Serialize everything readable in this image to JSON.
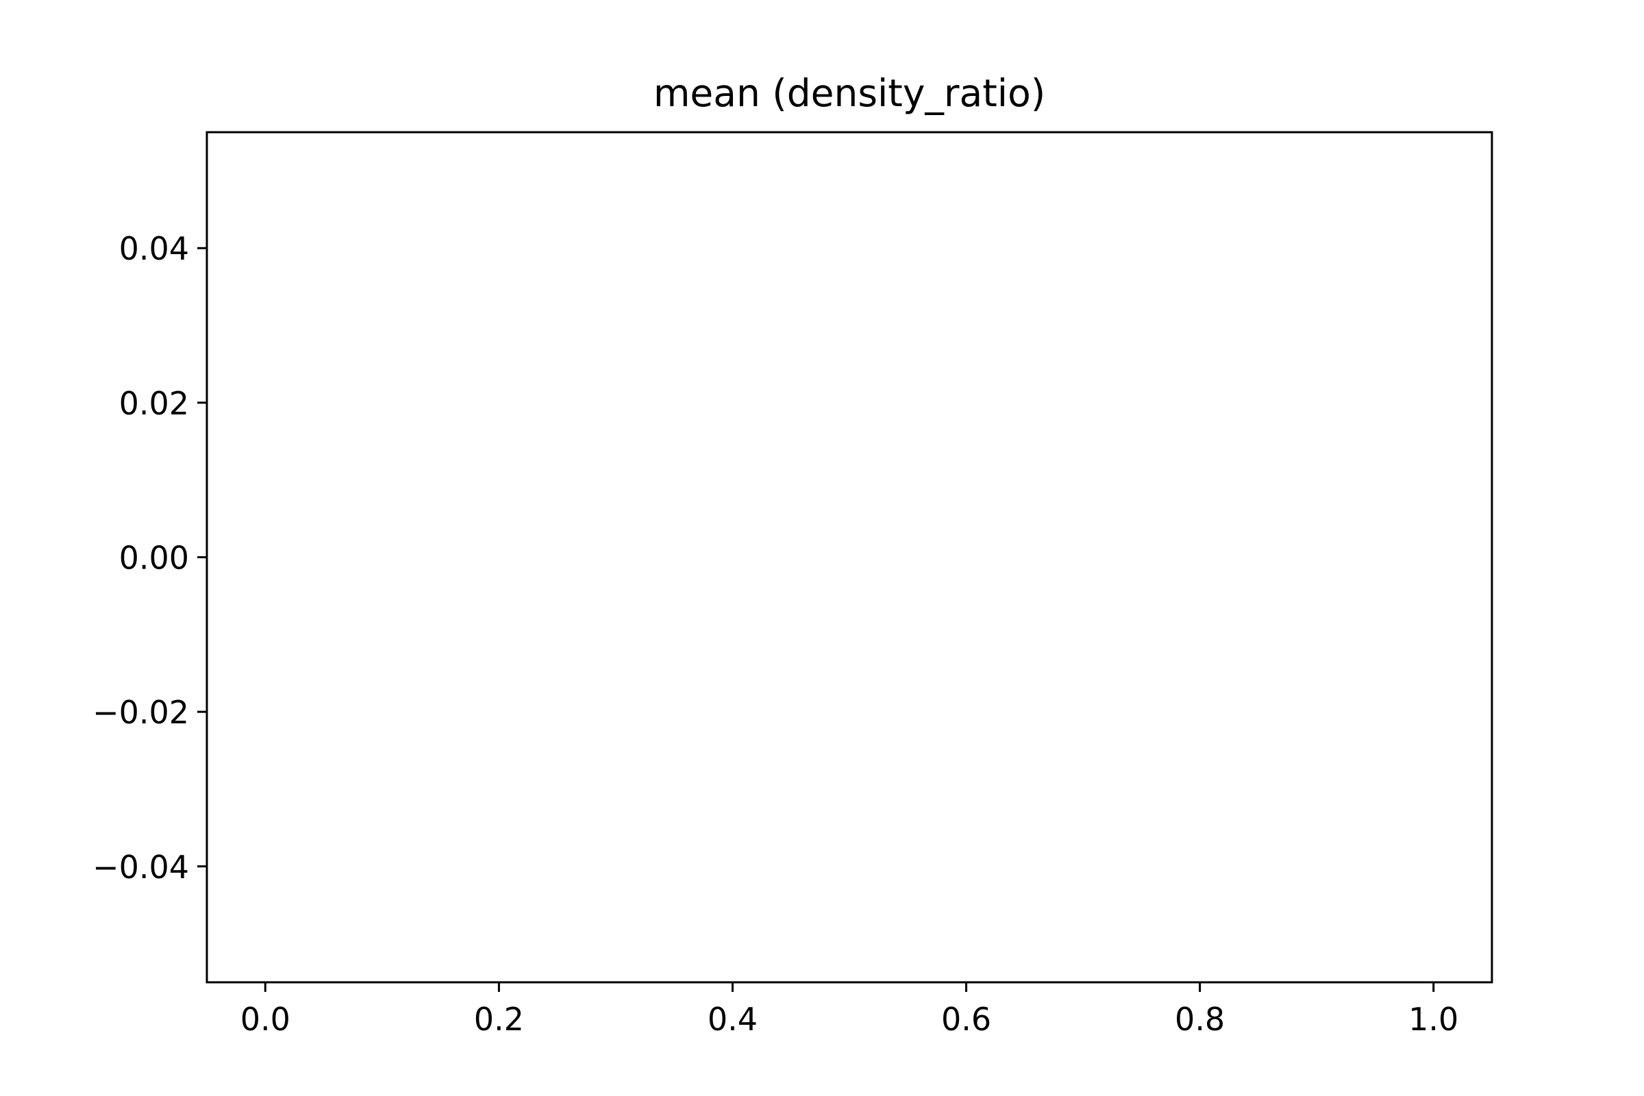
{
  "chart_data": {
    "type": "line",
    "title": "mean (density_ratio)",
    "xlabel": "",
    "ylabel": "",
    "xlim": [
      -0.05,
      1.05
    ],
    "ylim": [
      -0.055,
      0.055
    ],
    "x_ticks": [
      0.0,
      0.2,
      0.4,
      0.6,
      0.8,
      1.0
    ],
    "x_tick_labels": [
      "0.0",
      "0.2",
      "0.4",
      "0.6",
      "0.8",
      "1.0"
    ],
    "y_ticks": [
      -0.04,
      -0.02,
      0.0,
      0.02,
      0.04
    ],
    "y_tick_labels": [
      "−0.04",
      "−0.02",
      "0.00",
      "0.02",
      "0.04"
    ],
    "grid": false,
    "series": [],
    "frame_color": "#000000",
    "background_color": "#ffffff"
  }
}
